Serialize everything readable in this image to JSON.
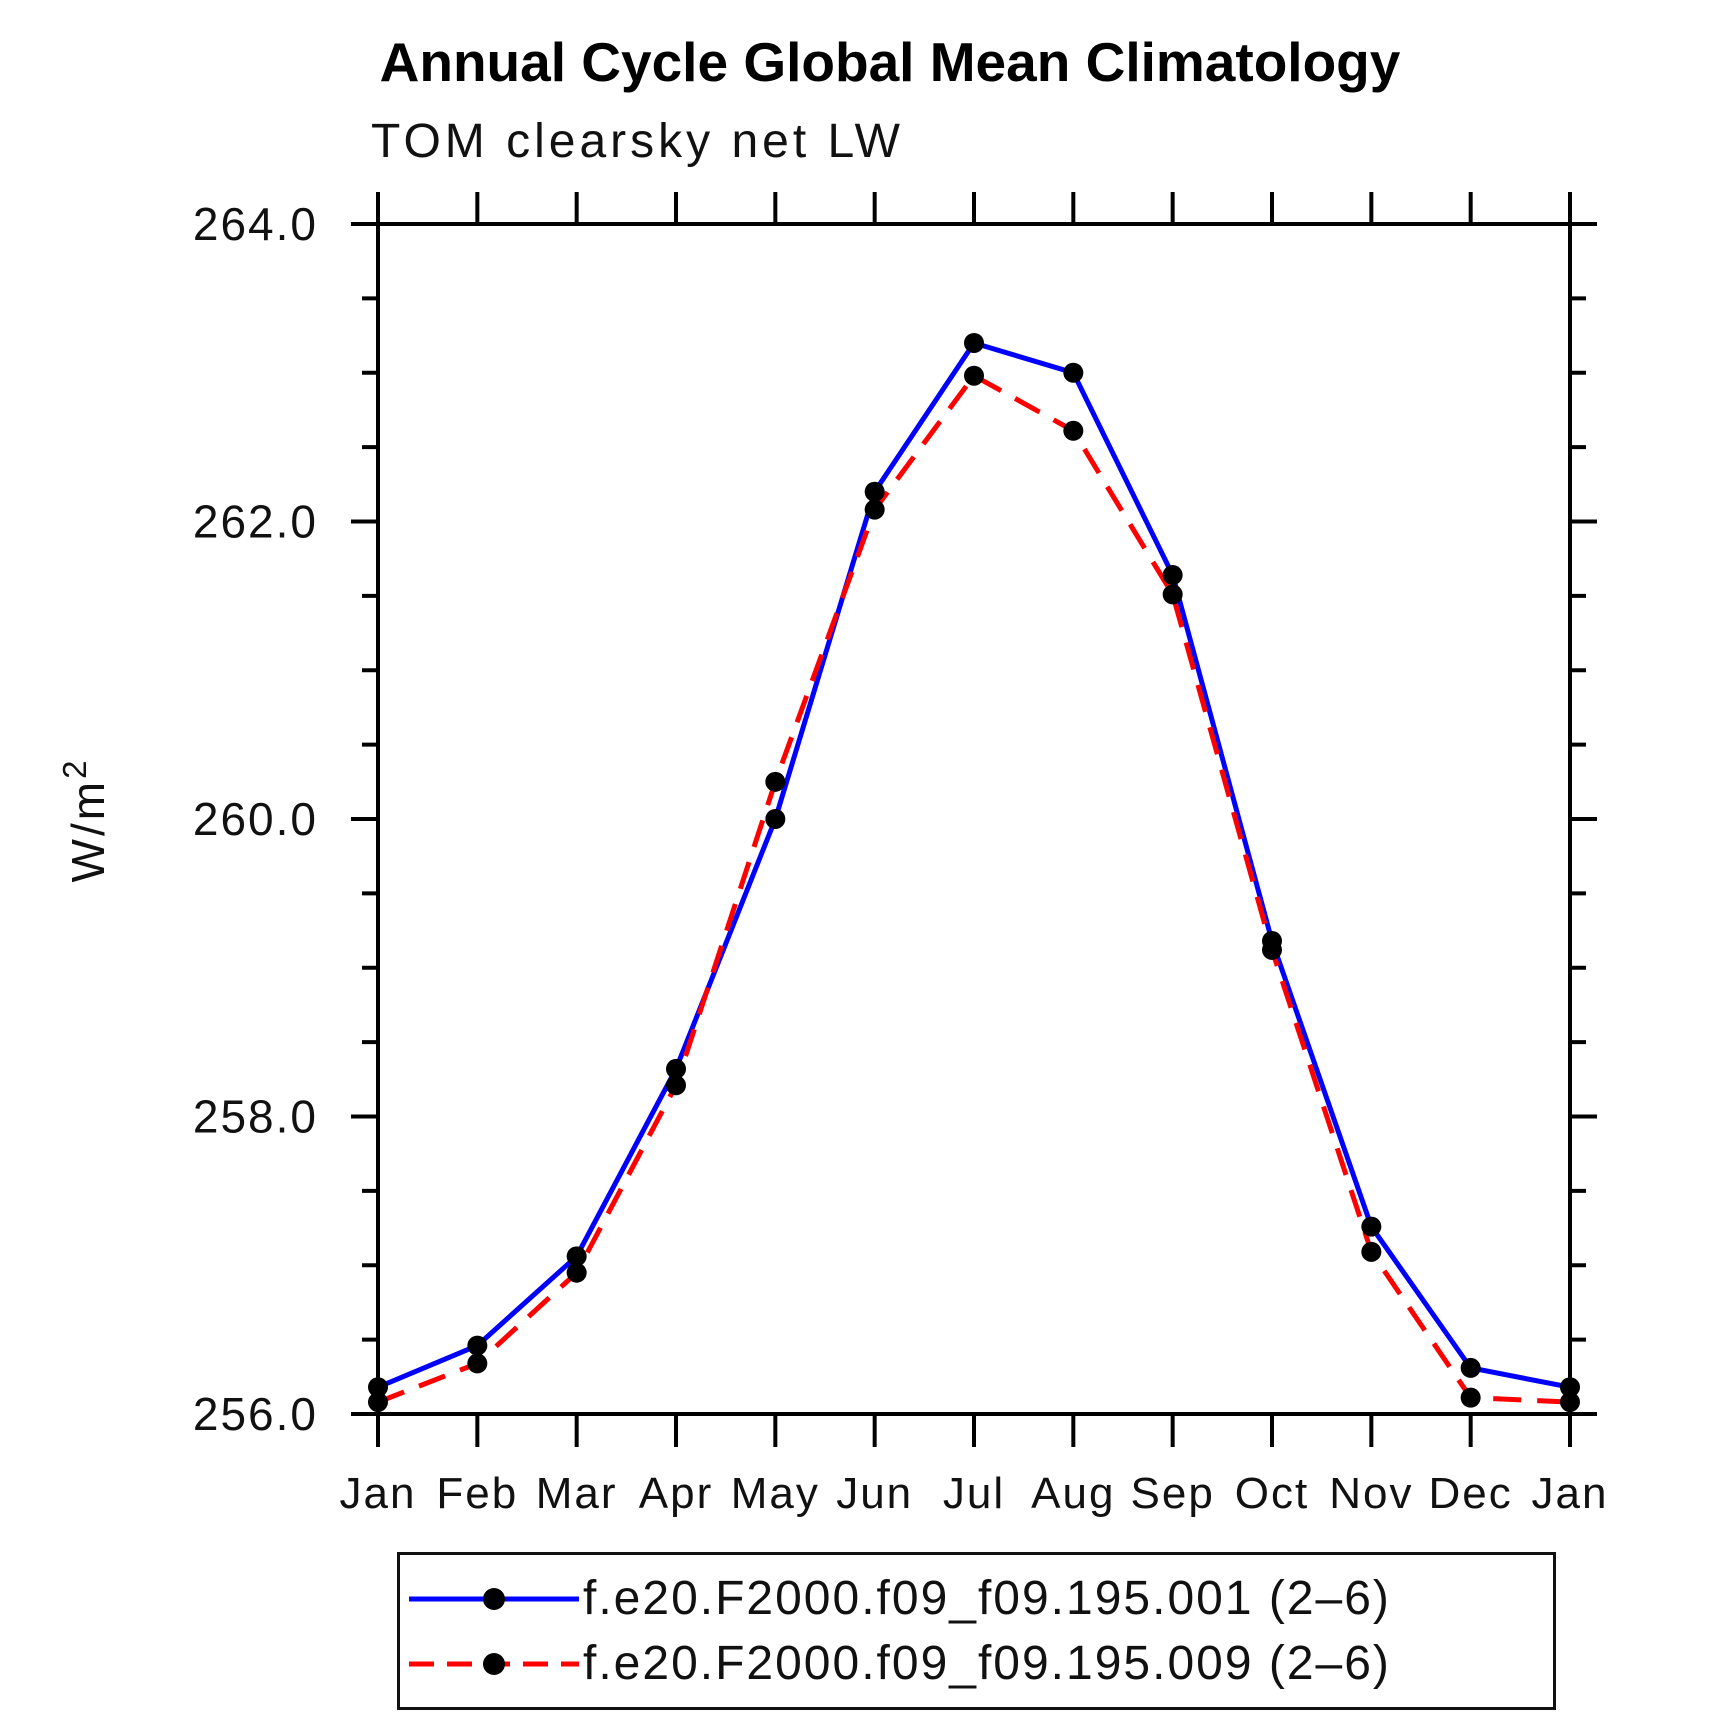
{
  "title": "Annual Cycle Global Mean Climatology",
  "subtitle": "TOM clearsky net LW",
  "chart_data": {
    "type": "line",
    "categories": [
      "Jan",
      "Feb",
      "Mar",
      "Apr",
      "May",
      "Jun",
      "Jul",
      "Aug",
      "Sep",
      "Oct",
      "Nov",
      "Dec",
      "Jan"
    ],
    "ylabel": {
      "base": "W/m",
      "exp": "2"
    },
    "ylim": [
      256.0,
      264.0
    ],
    "ytick_major": 2.0,
    "ytick_minor": 0.5,
    "ytick_labels": [
      "256.0",
      "258.0",
      "260.0",
      "262.0",
      "264.0"
    ],
    "grid": "off",
    "legend_position": "bottom",
    "axis_color": "#000000",
    "background_color": "#ffffff",
    "marker": {
      "shape": "circle",
      "color": "#000000"
    },
    "series": [
      {
        "name": "f.e20.F2000.f09_f09.195.001 (2–6)",
        "color": "#0000ff",
        "line_style": "solid",
        "dash": "",
        "legend_dash": "",
        "values": [
          256.18,
          256.46,
          257.06,
          258.32,
          260.0,
          262.2,
          263.2,
          263.0,
          261.64,
          259.18,
          257.26,
          256.31,
          256.18
        ]
      },
      {
        "name": "f.e20.F2000.f09_f09.195.009 (2–6)",
        "color": "#ff0000",
        "line_style": "dashed",
        "dash": "28 16",
        "legend_dash": "25 13",
        "values": [
          256.08,
          256.34,
          256.95,
          258.21,
          260.25,
          262.08,
          262.98,
          262.61,
          261.51,
          259.12,
          257.09,
          256.11,
          256.08
        ]
      }
    ]
  }
}
